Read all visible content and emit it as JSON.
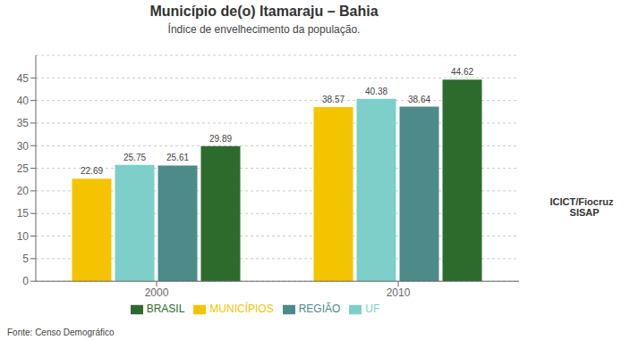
{
  "chart_data": {
    "type": "bar",
    "title": "Município de(o) Itamaraju – Bahia",
    "subtitle": "Índice de envelhecimento da população.",
    "annotations": [
      "Fonte: Censo Demográfico",
      "ICICT/Fiocruz\n  SISAP"
    ],
    "categories": [
      "2000",
      "2010"
    ],
    "series": [
      {
        "name": "MUNICÍPIOS",
        "color": "#F5C400",
        "values": [
          22.69,
          38.57
        ]
      },
      {
        "name": "UF",
        "color": "#7ECECA",
        "values": [
          25.75,
          40.38
        ]
      },
      {
        "name": "REGIÃO",
        "color": "#4D8B8B",
        "values": [
          25.61,
          38.64
        ]
      },
      {
        "name": "BRASIL",
        "color": "#2D6B2D",
        "values": [
          29.89,
          44.62
        ]
      }
    ],
    "ylim": [
      0,
      50
    ],
    "yticks": [
      0,
      5,
      10,
      15,
      20,
      25,
      30,
      35,
      40,
      45
    ],
    "grid": true,
    "legend": "bottom",
    "data_labels": true
  }
}
